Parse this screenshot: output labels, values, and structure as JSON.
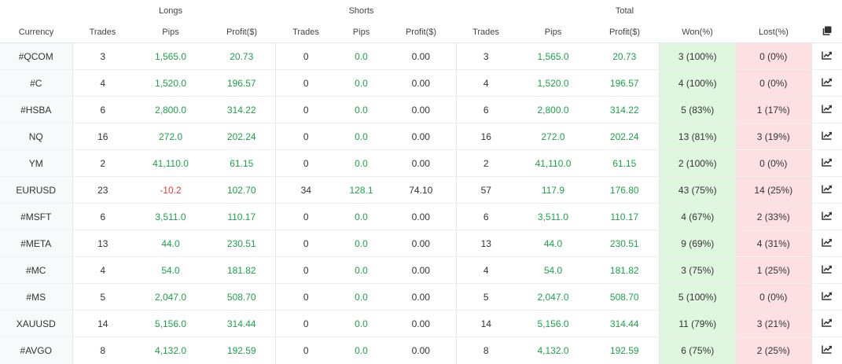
{
  "headers": {
    "groups": {
      "longs": "Longs",
      "shorts": "Shorts",
      "total": "Total"
    },
    "currency": "Currency",
    "trades": "Trades",
    "pips": "Pips",
    "profit": "Profit($)",
    "won": "Won(%)",
    "lost": "Lost(%)",
    "export_icon": "copy-icon"
  },
  "row_icon": "chart-icon",
  "colors": {
    "positive": "#1ea24a",
    "negative": "#e23b3b",
    "won_bg": "#dff7df",
    "lost_bg": "#fde0e1"
  },
  "rows": [
    {
      "currency": "#QCOM",
      "long_trades": "3",
      "long_pips": "1,565.0",
      "long_profit": "20.73",
      "short_trades": "0",
      "short_pips": "0.0",
      "short_profit": "0.00",
      "total_trades": "3",
      "total_pips": "1,565.0",
      "total_profit": "20.73",
      "won": "3 (100%)",
      "lost": "0 (0%)"
    },
    {
      "currency": "#C",
      "long_trades": "4",
      "long_pips": "1,520.0",
      "long_profit": "196.57",
      "short_trades": "0",
      "short_pips": "0.0",
      "short_profit": "0.00",
      "total_trades": "4",
      "total_pips": "1,520.0",
      "total_profit": "196.57",
      "won": "4 (100%)",
      "lost": "0 (0%)"
    },
    {
      "currency": "#HSBA",
      "long_trades": "6",
      "long_pips": "2,800.0",
      "long_profit": "314.22",
      "short_trades": "0",
      "short_pips": "0.0",
      "short_profit": "0.00",
      "total_trades": "6",
      "total_pips": "2,800.0",
      "total_profit": "314.22",
      "won": "5 (83%)",
      "lost": "1 (17%)"
    },
    {
      "currency": "NQ",
      "long_trades": "16",
      "long_pips": "272.0",
      "long_profit": "202.24",
      "short_trades": "0",
      "short_pips": "0.0",
      "short_profit": "0.00",
      "total_trades": "16",
      "total_pips": "272.0",
      "total_profit": "202.24",
      "won": "13 (81%)",
      "lost": "3 (19%)"
    },
    {
      "currency": "YM",
      "long_trades": "2",
      "long_pips": "41,110.0",
      "long_profit": "61.15",
      "short_trades": "0",
      "short_pips": "0.0",
      "short_profit": "0.00",
      "total_trades": "2",
      "total_pips": "41,110.0",
      "total_profit": "61.15",
      "won": "2 (100%)",
      "lost": "0 (0%)"
    },
    {
      "currency": "EURUSD",
      "long_trades": "23",
      "long_pips": "-10.2",
      "long_profit": "102.70",
      "short_trades": "34",
      "short_pips": "128.1",
      "short_profit": "74.10",
      "total_trades": "57",
      "total_pips": "117.9",
      "total_profit": "176.80",
      "won": "43 (75%)",
      "lost": "14 (25%)"
    },
    {
      "currency": "#MSFT",
      "long_trades": "6",
      "long_pips": "3,511.0",
      "long_profit": "110.17",
      "short_trades": "0",
      "short_pips": "0.0",
      "short_profit": "0.00",
      "total_trades": "6",
      "total_pips": "3,511.0",
      "total_profit": "110.17",
      "won": "4 (67%)",
      "lost": "2 (33%)"
    },
    {
      "currency": "#META",
      "long_trades": "13",
      "long_pips": "44.0",
      "long_profit": "230.51",
      "short_trades": "0",
      "short_pips": "0.0",
      "short_profit": "0.00",
      "total_trades": "13",
      "total_pips": "44.0",
      "total_profit": "230.51",
      "won": "9 (69%)",
      "lost": "4 (31%)"
    },
    {
      "currency": "#MC",
      "long_trades": "4",
      "long_pips": "54.0",
      "long_profit": "181.82",
      "short_trades": "0",
      "short_pips": "0.0",
      "short_profit": "0.00",
      "total_trades": "4",
      "total_pips": "54.0",
      "total_profit": "181.82",
      "won": "3 (75%)",
      "lost": "1 (25%)"
    },
    {
      "currency": "#MS",
      "long_trades": "5",
      "long_pips": "2,047.0",
      "long_profit": "508.70",
      "short_trades": "0",
      "short_pips": "0.0",
      "short_profit": "0.00",
      "total_trades": "5",
      "total_pips": "2,047.0",
      "total_profit": "508.70",
      "won": "5 (100%)",
      "lost": "0 (0%)"
    },
    {
      "currency": "XAUUSD",
      "long_trades": "14",
      "long_pips": "5,156.0",
      "long_profit": "314.44",
      "short_trades": "0",
      "short_pips": "0.0",
      "short_profit": "0.00",
      "total_trades": "14",
      "total_pips": "5,156.0",
      "total_profit": "314.44",
      "won": "11 (79%)",
      "lost": "3 (21%)"
    },
    {
      "currency": "#AVGO",
      "long_trades": "8",
      "long_pips": "4,132.0",
      "long_profit": "192.59",
      "short_trades": "0",
      "short_pips": "0.0",
      "short_profit": "0.00",
      "total_trades": "8",
      "total_pips": "4,132.0",
      "total_profit": "192.59",
      "won": "6 (75%)",
      "lost": "2 (25%)"
    }
  ]
}
